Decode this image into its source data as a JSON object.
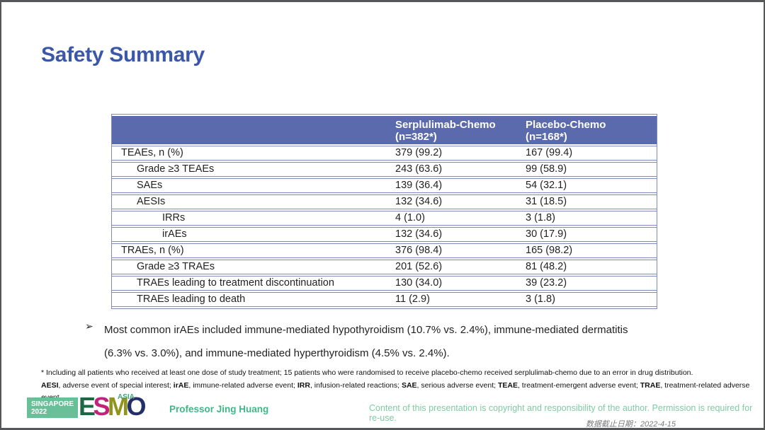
{
  "slide": {
    "title": "Safety Summary"
  },
  "table": {
    "columns": [
      "Serplulimab-Chemo\n(n=382*)",
      "Placebo-Chemo\n(n=168*)"
    ],
    "rows": [
      {
        "label": "TEAEs, n (%)",
        "indent": 0,
        "serplulimab": "379 (99.2)",
        "placebo": "167 (99.4)"
      },
      {
        "label": "Grade ≥3 TEAEs",
        "indent": 1,
        "serplulimab": "243 (63.6)",
        "placebo": "99 (58.9)"
      },
      {
        "label": "SAEs",
        "indent": 1,
        "serplulimab": "139 (36.4)",
        "placebo": "54 (32.1)"
      },
      {
        "label": "AESIs",
        "indent": 1,
        "serplulimab": "132 (34.6)",
        "placebo": "31 (18.5)"
      },
      {
        "label": "IRRs",
        "indent": 2,
        "serplulimab": "4 (1.0)",
        "placebo": "3 (1.8)"
      },
      {
        "label": "irAEs",
        "indent": 2,
        "serplulimab": "132 (34.6)",
        "placebo": "30 (17.9)"
      },
      {
        "label": "TRAEs, n (%)",
        "indent": 0,
        "serplulimab": "376 (98.4)",
        "placebo": "165 (98.2)"
      },
      {
        "label": "Grade ≥3 TRAEs",
        "indent": 1,
        "serplulimab": "201 (52.6)",
        "placebo": "81 (48.2)"
      },
      {
        "label": "TRAEs leading to treatment discontinuation",
        "indent": 1,
        "serplulimab": "130 (34.0)",
        "placebo": "39 (23.2)"
      },
      {
        "label": "TRAEs leading to death",
        "indent": 1,
        "serplulimab": "11 (2.9)",
        "placebo": "3 (1.8)"
      }
    ]
  },
  "bullet": {
    "marker": "➢",
    "text": "Most common irAEs included immune-mediated hypothyroidism (10.7% vs. 2.4%), immune-mediated dermatitis (6.3% vs. 3.0%), and immune-mediated hyperthyroidism (4.5% vs. 2.4%)."
  },
  "footnotes": {
    "line1": "* Including all patients who received at least one dose of study treatment; 15 patients who were randomised to receive placebo-chemo received serplulimab-chemo due to an error in drug distribution.",
    "line2_segments": [
      {
        "text": "AESI",
        "bold": true
      },
      {
        "text": ", adverse event of special interest; ",
        "bold": false
      },
      {
        "text": "irAE",
        "bold": true
      },
      {
        "text": ", immune-related adverse event; ",
        "bold": false
      },
      {
        "text": "IRR",
        "bold": true
      },
      {
        "text": ", infusion-related reactions; ",
        "bold": false
      },
      {
        "text": "SAE",
        "bold": true
      },
      {
        "text": ", serious adverse event; ",
        "bold": false
      },
      {
        "text": "TEAE",
        "bold": true
      },
      {
        "text": ", treatment-emergent adverse event; ",
        "bold": false
      },
      {
        "text": "TRAE",
        "bold": true
      },
      {
        "text": ", treatment-related adverse event.",
        "bold": false
      }
    ]
  },
  "footer": {
    "logo": {
      "box_text": "SINGAPORE\n2022",
      "esmo_letters": [
        {
          "ch": "E",
          "color": "#1b6a44"
        },
        {
          "ch": "S",
          "color": "#c2217c"
        },
        {
          "ch": "M",
          "color": "#90941d"
        },
        {
          "ch": "O",
          "color": "#232f6b"
        }
      ],
      "asia": "ASIA"
    },
    "presenter": "Professor Jing Huang",
    "copyright": "Content of this presentation is copyright and responsibility of the author. Permission is required for re-use.",
    "data_cutoff": "数据截止日期：2022-4-15"
  },
  "colors": {
    "title_blue": "#3a57a8",
    "table_header_bg": "#5a6aad",
    "table_border": "#8089c2",
    "logo_box_green": "#68bf98",
    "presenter_green": "#41b687",
    "copyright_green": "#7fcba4",
    "cutoff_gray": "#7a7a7a"
  }
}
